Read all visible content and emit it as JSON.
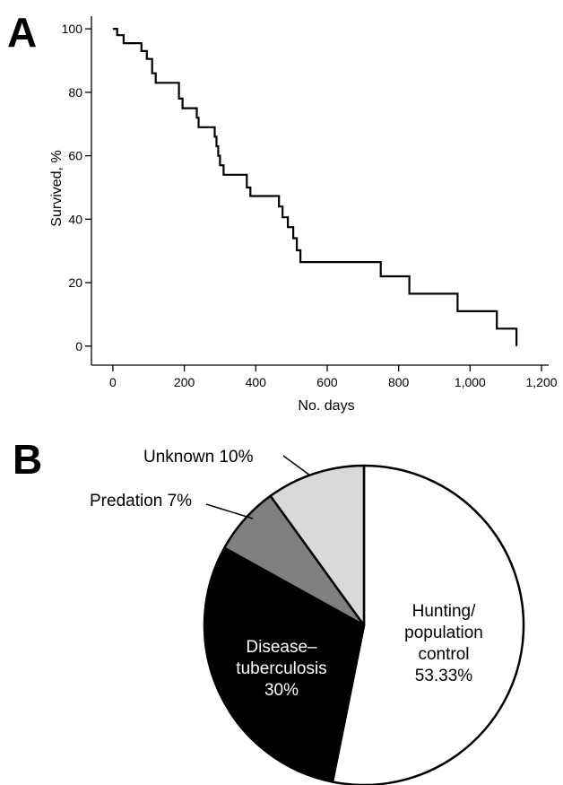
{
  "panels": {
    "a": "A",
    "b": "B"
  },
  "chart_data": [
    {
      "type": "line",
      "xlabel": "No. days",
      "ylabel": "Survived, %",
      "xlim": [
        -60,
        1220
      ],
      "ylim": [
        -6,
        104
      ],
      "xticks": [
        0,
        200,
        400,
        600,
        800,
        1000,
        1200
      ],
      "xtick_labels": [
        "0",
        "200",
        "400",
        "600",
        "800",
        "1,000",
        "1,200"
      ],
      "yticks": [
        0,
        20,
        40,
        60,
        80,
        100
      ],
      "ytick_labels": [
        "0",
        "20",
        "40",
        "60",
        "80",
        "100"
      ],
      "grid": false,
      "series": [
        {
          "step": true,
          "x": [
            0,
            12,
            30,
            80,
            95,
            110,
            120,
            185,
            195,
            235,
            240,
            285,
            290,
            295,
            300,
            310,
            375,
            385,
            465,
            475,
            490,
            505,
            515,
            525,
            750,
            830,
            965,
            1075,
            1130
          ],
          "y": [
            100,
            98,
            95.5,
            93,
            90.5,
            86,
            83,
            78,
            75,
            72,
            69,
            66,
            63,
            60,
            57,
            54,
            50,
            47.3,
            44,
            40.6,
            37.5,
            34,
            30.2,
            26.5,
            22,
            16.5,
            11,
            5.5,
            0
          ]
        }
      ]
    },
    {
      "type": "pie",
      "slices": [
        {
          "label": "Hunting/ population control",
          "lines": [
            "Hunting/",
            "population",
            "control",
            "53.33%"
          ],
          "value": 53.33,
          "color": "#ffffff",
          "text_color": "#000000"
        },
        {
          "label": "Disease– tuberculosis",
          "lines": [
            "Disease–",
            "tuberculosis",
            "30%"
          ],
          "value": 30,
          "color": "#000000",
          "text_color": "#ffffff"
        },
        {
          "label": "Predation",
          "lines": [
            "Predation 7%"
          ],
          "value": 7,
          "color": "#808080",
          "text_color": "#000000"
        },
        {
          "label": "Unknown",
          "lines": [
            "Unknown 10%"
          ],
          "value": 10,
          "color": "#d9d9d9",
          "text_color": "#000000"
        }
      ]
    }
  ]
}
